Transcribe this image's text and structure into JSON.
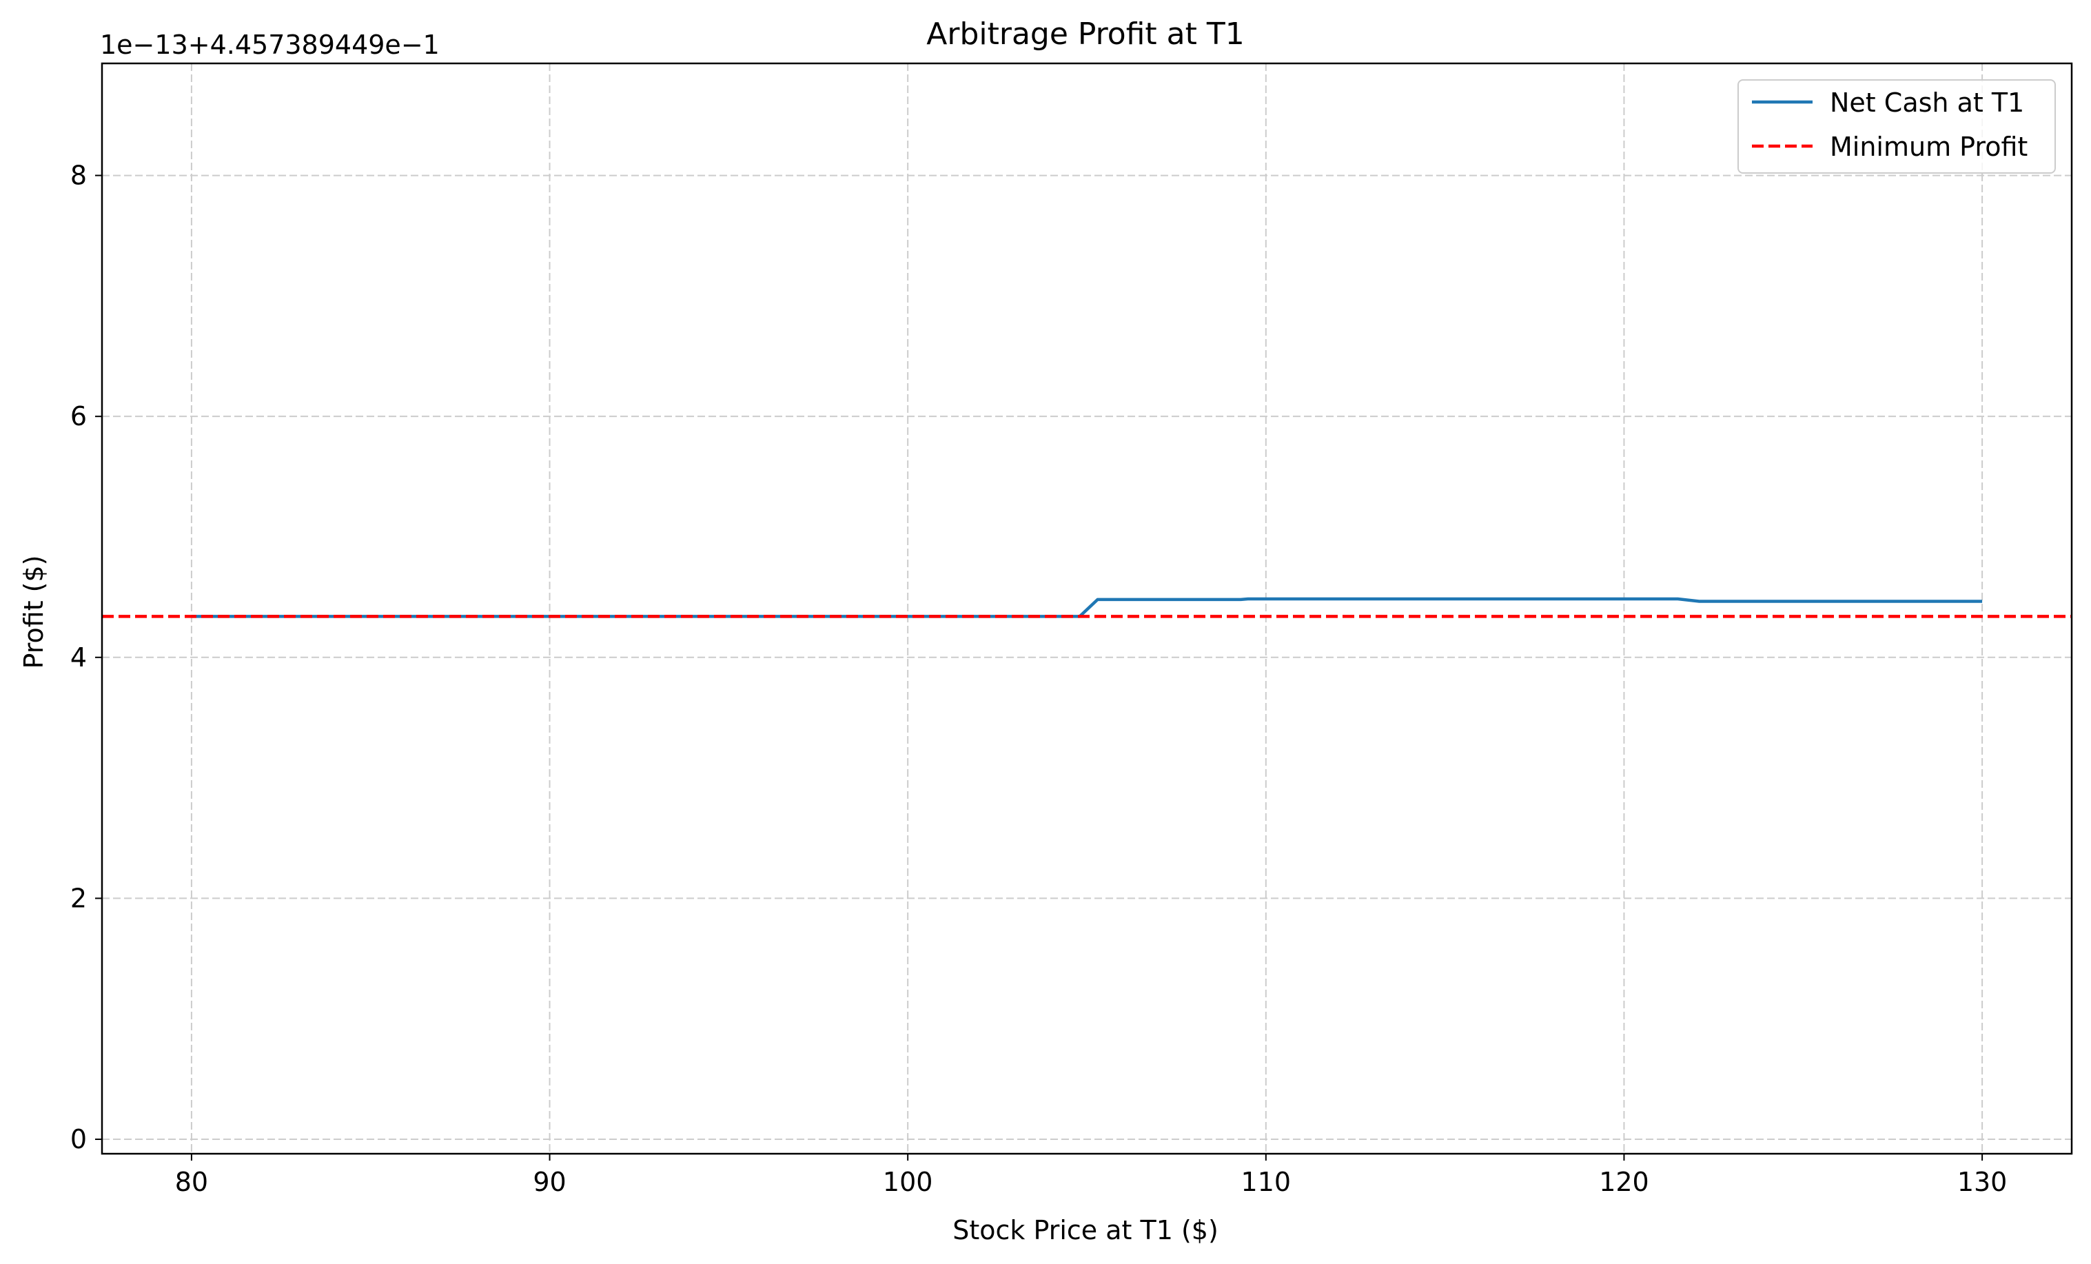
{
  "chart_data": {
    "type": "line",
    "title": "Arbitrage Profit at T1",
    "xlabel": "Stock Price at T1 ($)",
    "ylabel": "Profit ($)",
    "offset_label": "1e−13+4.457389449e−1",
    "xlim": [
      77.5,
      132.5
    ],
    "ylim": [
      -0.12,
      8.93
    ],
    "xticks": [
      80,
      90,
      100,
      110,
      120,
      130
    ],
    "yticks": [
      0,
      2,
      4,
      6,
      8
    ],
    "grid": true,
    "legend_position": "top-right",
    "series": [
      {
        "name": "Net Cash at T1",
        "color": "#1f77b4",
        "style": "solid",
        "x": [
          80,
          104.8,
          105.3,
          109.3,
          109.5,
          121.5,
          122.1,
          130
        ],
        "y": [
          4.34,
          4.34,
          4.48,
          4.48,
          4.485,
          4.485,
          4.465,
          4.465
        ]
      },
      {
        "name": "Minimum Profit",
        "color": "#ff0000",
        "style": "dashed",
        "hline": 4.34
      }
    ]
  }
}
